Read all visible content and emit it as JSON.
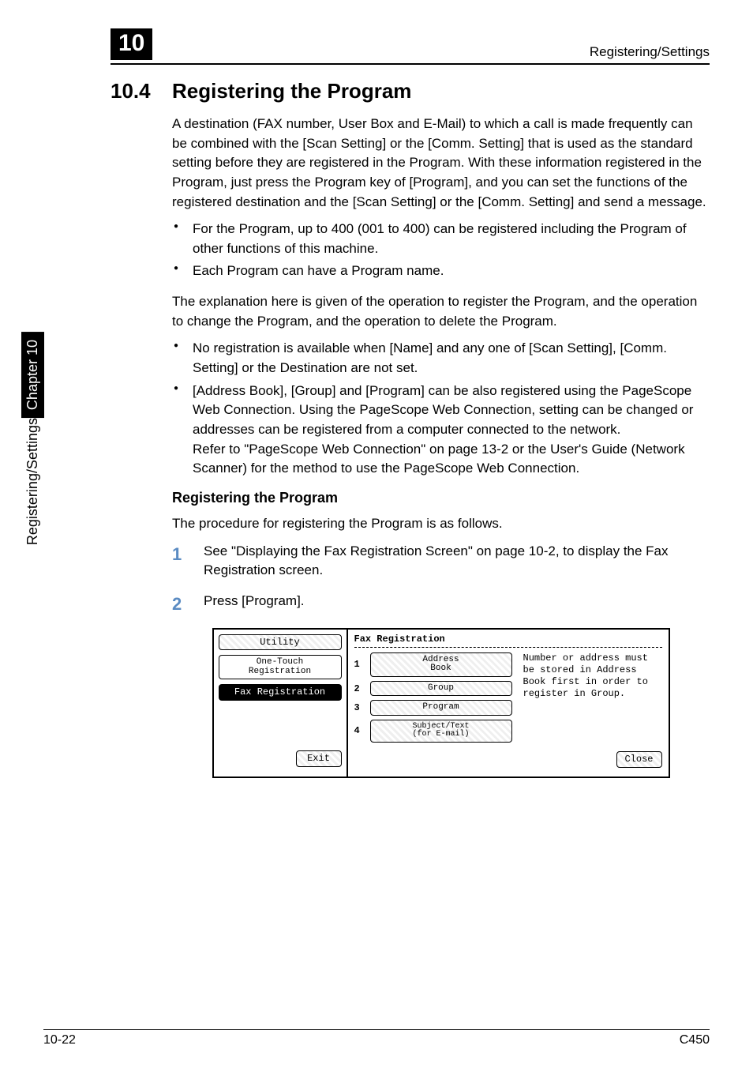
{
  "header": {
    "chapter_number": "10",
    "running_title": "Registering/Settings"
  },
  "side_tab": {
    "chapter_label": "Chapter 10",
    "section_label": "Registering/Settings"
  },
  "section": {
    "number": "10.4",
    "title": "Registering the Program"
  },
  "paras": {
    "intro": "A destination (FAX number, User Box and E-Mail) to which a call is made frequently can be combined with the [Scan Setting] or the [Comm. Setting] that is used as the standard setting before they are registered in the Program. With these information registered in the Program, just press the Program key of [Program], and you can set the functions of the registered destination and the [Scan Setting] or the [Comm. Setting] and send a message.",
    "bullets_a": {
      "b1": "For the Program, up to 400 (001 to 400) can be registered including the Program of other functions of this machine.",
      "b2": "Each Program can have a Program name."
    },
    "middle": "The explanation here is given of the operation to register the Program, and the operation to change the Program, and the operation to delete the Program.",
    "bullets_b": {
      "b1": "No registration is available when [Name] and any one of [Scan Setting], [Comm. Setting] or the Destination are not set.",
      "b2": "[Address Book], [Group] and [Program] can be also registered using the PageScope Web Connection. Using the PageScope Web Connection, setting can be changed or addresses can be registered from a computer connected to the network.\nRefer to \"PageScope Web Connection\" on page 13-2 or the User's Guide (Network Scanner) for the method to use the PageScope Web Connection."
    },
    "subhead": "Registering the Program",
    "proc_intro": "The procedure for registering the Program is as follows."
  },
  "steps": {
    "s1": {
      "num": "1",
      "text": "See \"Displaying the Fax Registration Screen\" on page 10-2, to display the Fax Registration screen."
    },
    "s2": {
      "num": "2",
      "text": "Press [Program]."
    }
  },
  "figure": {
    "left": {
      "utility": "Utility",
      "one_touch": "One-Touch\nRegistration",
      "fax_reg": "Fax Registration",
      "exit": "Exit"
    },
    "right": {
      "title": "Fax Registration",
      "items": {
        "i1": {
          "idx": "1",
          "label": "Address\nBook"
        },
        "i2": {
          "idx": "2",
          "label": "Group"
        },
        "i3": {
          "idx": "3",
          "label": "Program"
        },
        "i4": {
          "idx": "4",
          "label": "Subject/Text\n(for E-mail)"
        }
      },
      "hint": "Number or address must be stored in Address Book first in order to register in Group.",
      "close": "Close"
    }
  },
  "footer": {
    "page": "10-22",
    "model": "C450"
  }
}
